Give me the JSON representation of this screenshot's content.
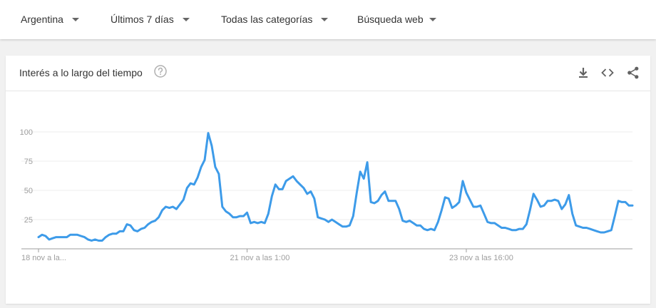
{
  "filters": {
    "region": "Argentina",
    "time": "Últimos 7 días",
    "category": "Todas las categorías",
    "search_type": "Búsqueda web"
  },
  "card": {
    "title": "Interés a lo largo del tiempo",
    "icons": [
      "help-icon",
      "download-icon",
      "embed-icon",
      "share-icon"
    ]
  },
  "colors": {
    "line": "#4285f4",
    "series": "#3d9be9"
  },
  "chart_data": {
    "type": "line",
    "title": "Interés a lo largo del tiempo",
    "xlabel": "",
    "ylabel": "",
    "ylim": [
      0,
      100
    ],
    "yticks": [
      25,
      50,
      75,
      100
    ],
    "grid": true,
    "x_tick_labels": [
      "18 nov a la...",
      "21 nov a las 1:00",
      "23 nov a las 16:00"
    ],
    "x_tick_index": [
      0,
      59,
      121
    ],
    "series": [
      {
        "values": [
          10,
          12,
          11,
          8,
          9,
          10,
          10,
          10,
          10,
          12,
          12,
          12,
          11,
          10,
          8,
          7,
          8,
          7,
          7,
          10,
          12,
          13,
          13,
          15,
          15,
          21,
          20,
          16,
          15,
          17,
          18,
          21,
          23,
          24,
          27,
          33,
          36,
          35,
          36,
          34,
          38,
          42,
          52,
          56,
          55,
          61,
          70,
          76,
          99,
          88,
          70,
          64,
          36,
          32,
          30,
          27,
          27,
          28,
          28,
          31,
          22,
          23,
          22,
          23,
          22,
          30,
          45,
          55,
          51,
          51,
          58,
          60,
          62,
          58,
          55,
          52,
          47,
          49,
          43,
          27,
          26,
          25,
          23,
          25,
          23,
          21,
          19,
          19,
          20,
          28,
          48,
          66,
          60,
          74,
          40,
          39,
          41,
          46,
          49,
          41,
          41,
          41,
          34,
          24,
          23,
          24,
          22,
          20,
          20,
          17,
          16,
          17,
          16,
          23,
          33,
          44,
          43,
          35,
          37,
          40,
          58,
          48,
          42,
          36,
          36,
          37,
          30,
          23,
          22,
          22,
          20,
          18,
          18,
          17,
          16,
          16,
          17,
          17,
          21,
          33,
          47,
          42,
          36,
          37,
          41,
          41,
          42,
          41,
          34,
          38,
          46,
          30,
          20,
          19,
          18,
          18,
          17,
          16,
          15,
          14,
          14,
          15,
          16,
          28,
          41,
          40,
          40,
          37,
          37
        ]
      }
    ]
  }
}
